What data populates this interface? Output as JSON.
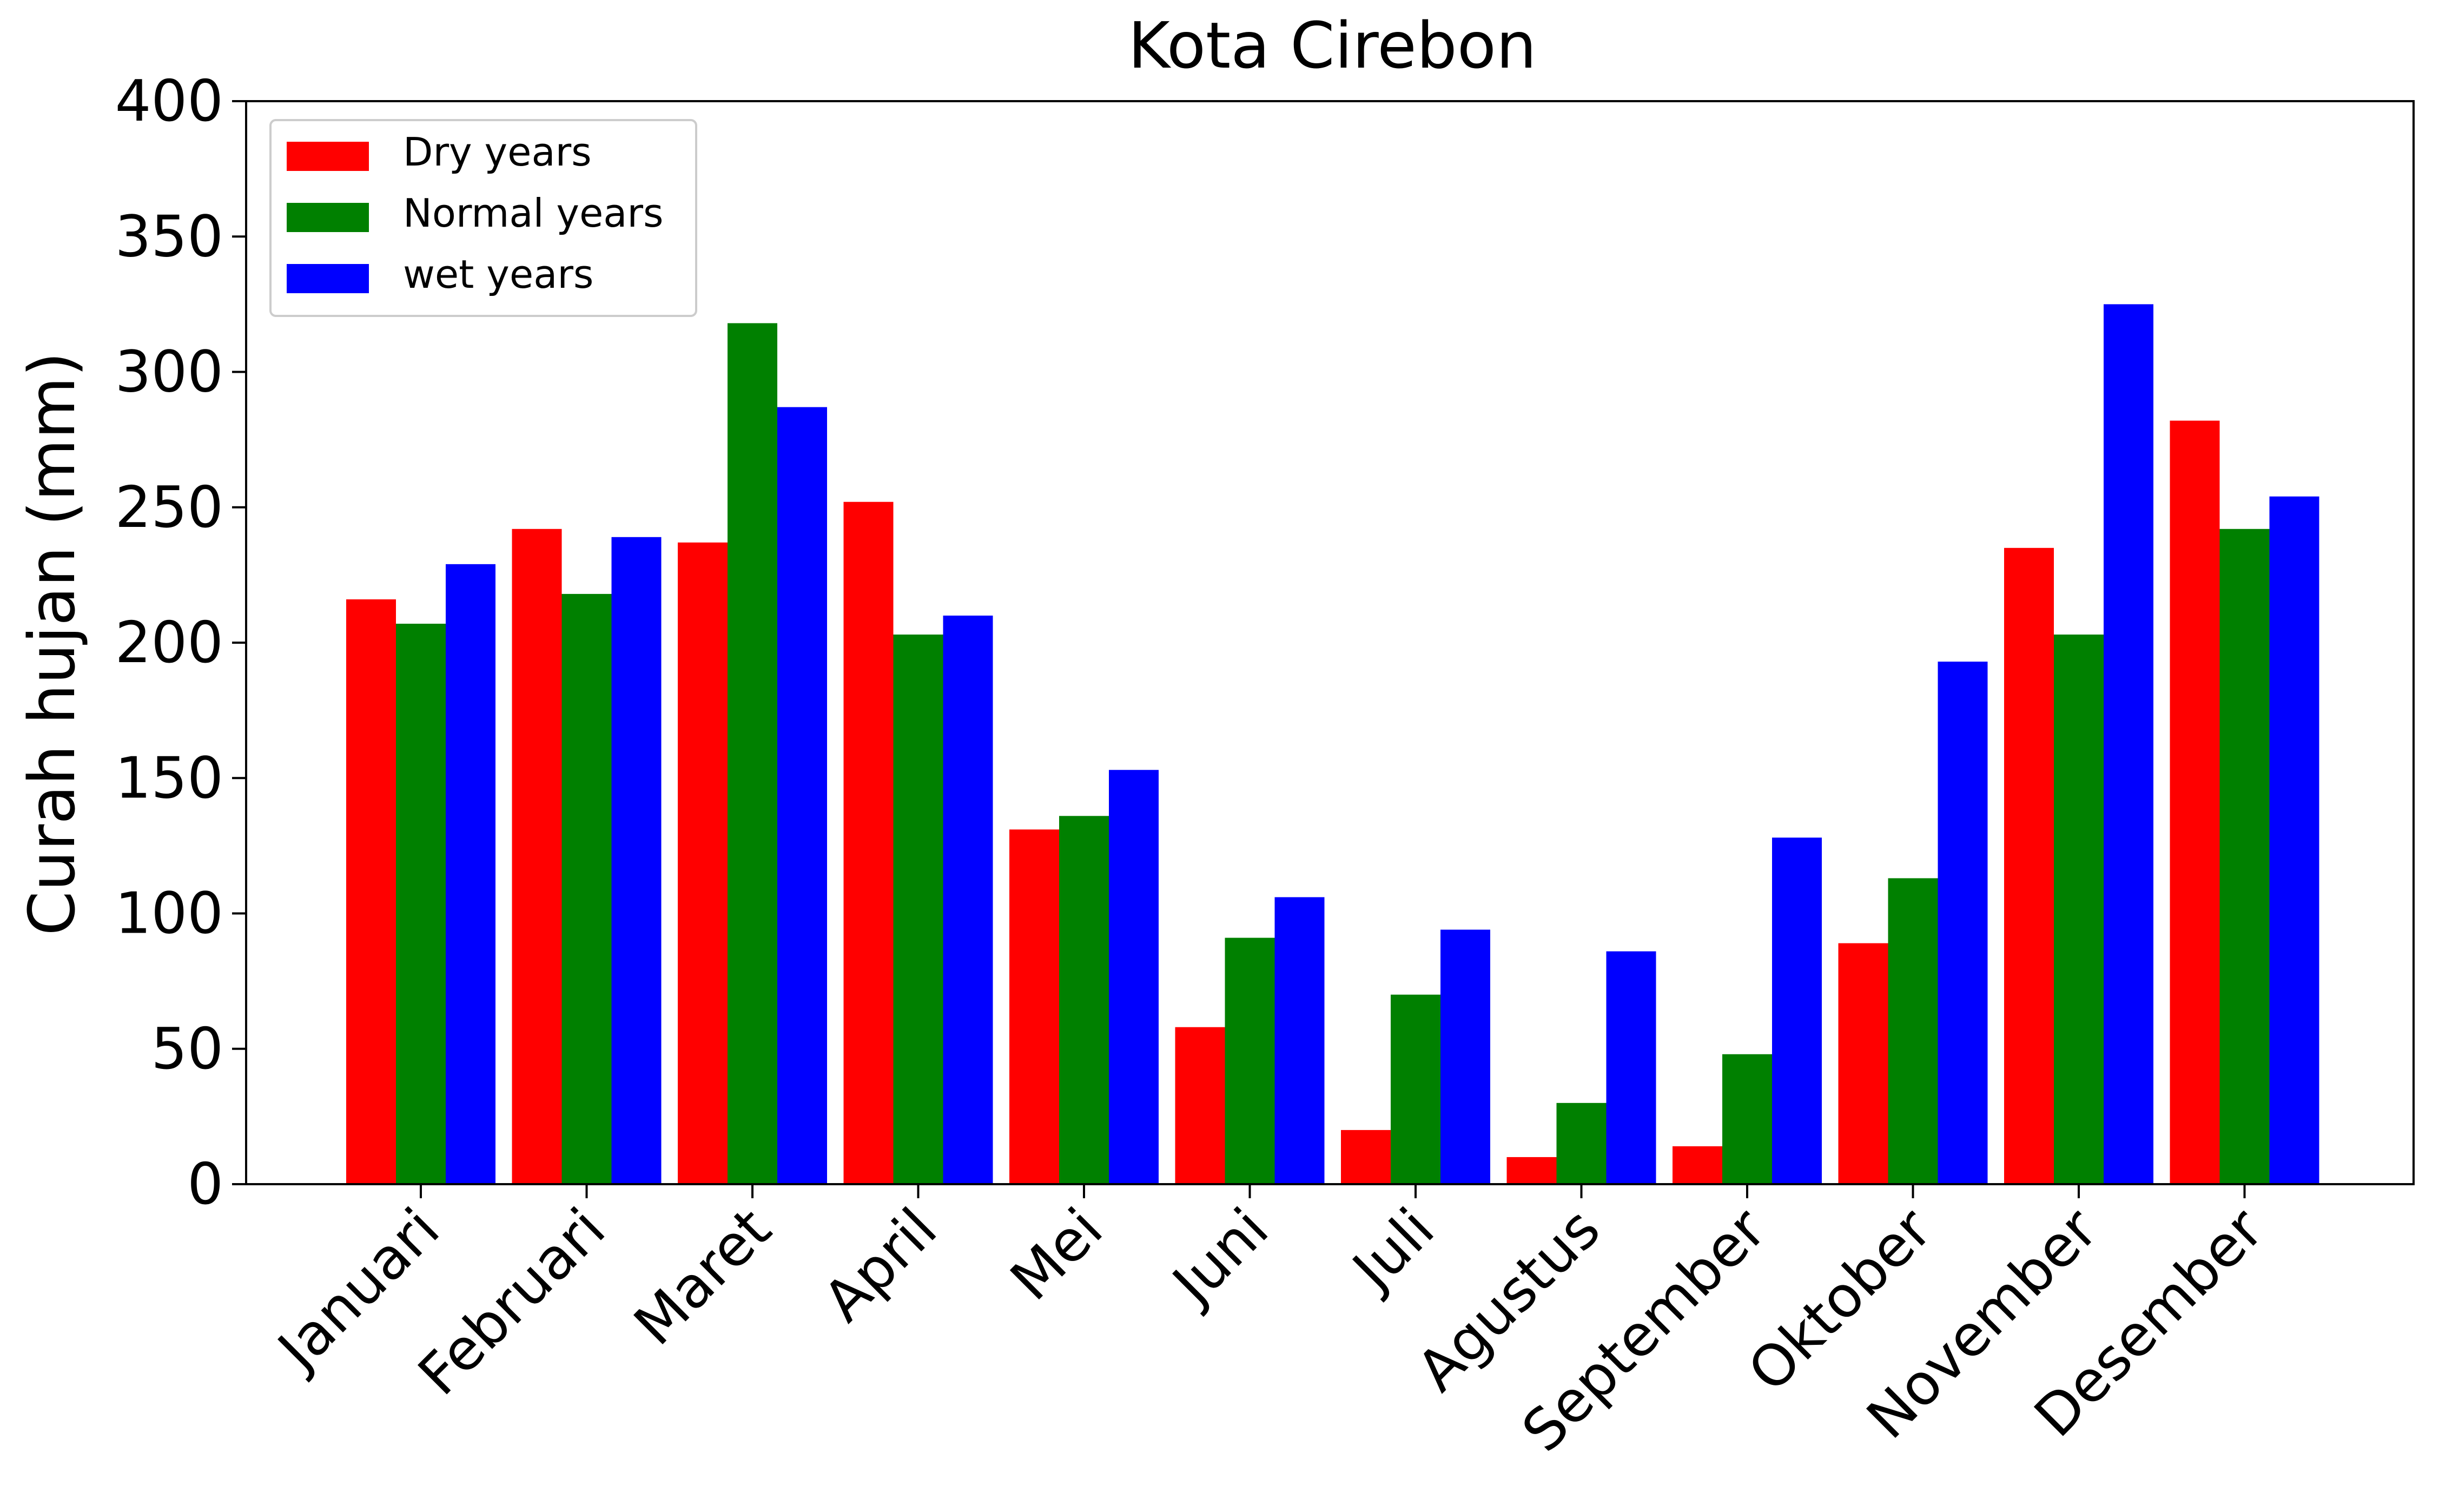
{
  "chart_data": {
    "type": "bar",
    "title": "Kota Cirebon",
    "xlabel": "",
    "ylabel": "Curah hujan (mm)",
    "ylim": [
      0,
      400
    ],
    "yticks": [
      0,
      50,
      100,
      150,
      200,
      250,
      300,
      350,
      400
    ],
    "grid": false,
    "legend_position": "top-left",
    "categories": [
      "Januari",
      "Februari",
      "Maret",
      "April",
      "Mei",
      "Juni",
      "Juli",
      "Agustus",
      "September",
      "Oktober",
      "November",
      "Desember"
    ],
    "series": [
      {
        "name": "Dry years",
        "color": "#ff0000",
        "values": [
          216,
          242,
          237,
          252,
          131,
          58,
          20,
          10,
          14,
          89,
          235,
          282
        ]
      },
      {
        "name": "Normal years",
        "color": "#008000",
        "values": [
          207,
          218,
          318,
          203,
          136,
          91,
          70,
          30,
          48,
          113,
          203,
          242
        ]
      },
      {
        "name": "wet years",
        "color": "#0000ff",
        "values": [
          229,
          239,
          287,
          210,
          153,
          106,
          94,
          86,
          128,
          193,
          325,
          254
        ]
      }
    ]
  }
}
